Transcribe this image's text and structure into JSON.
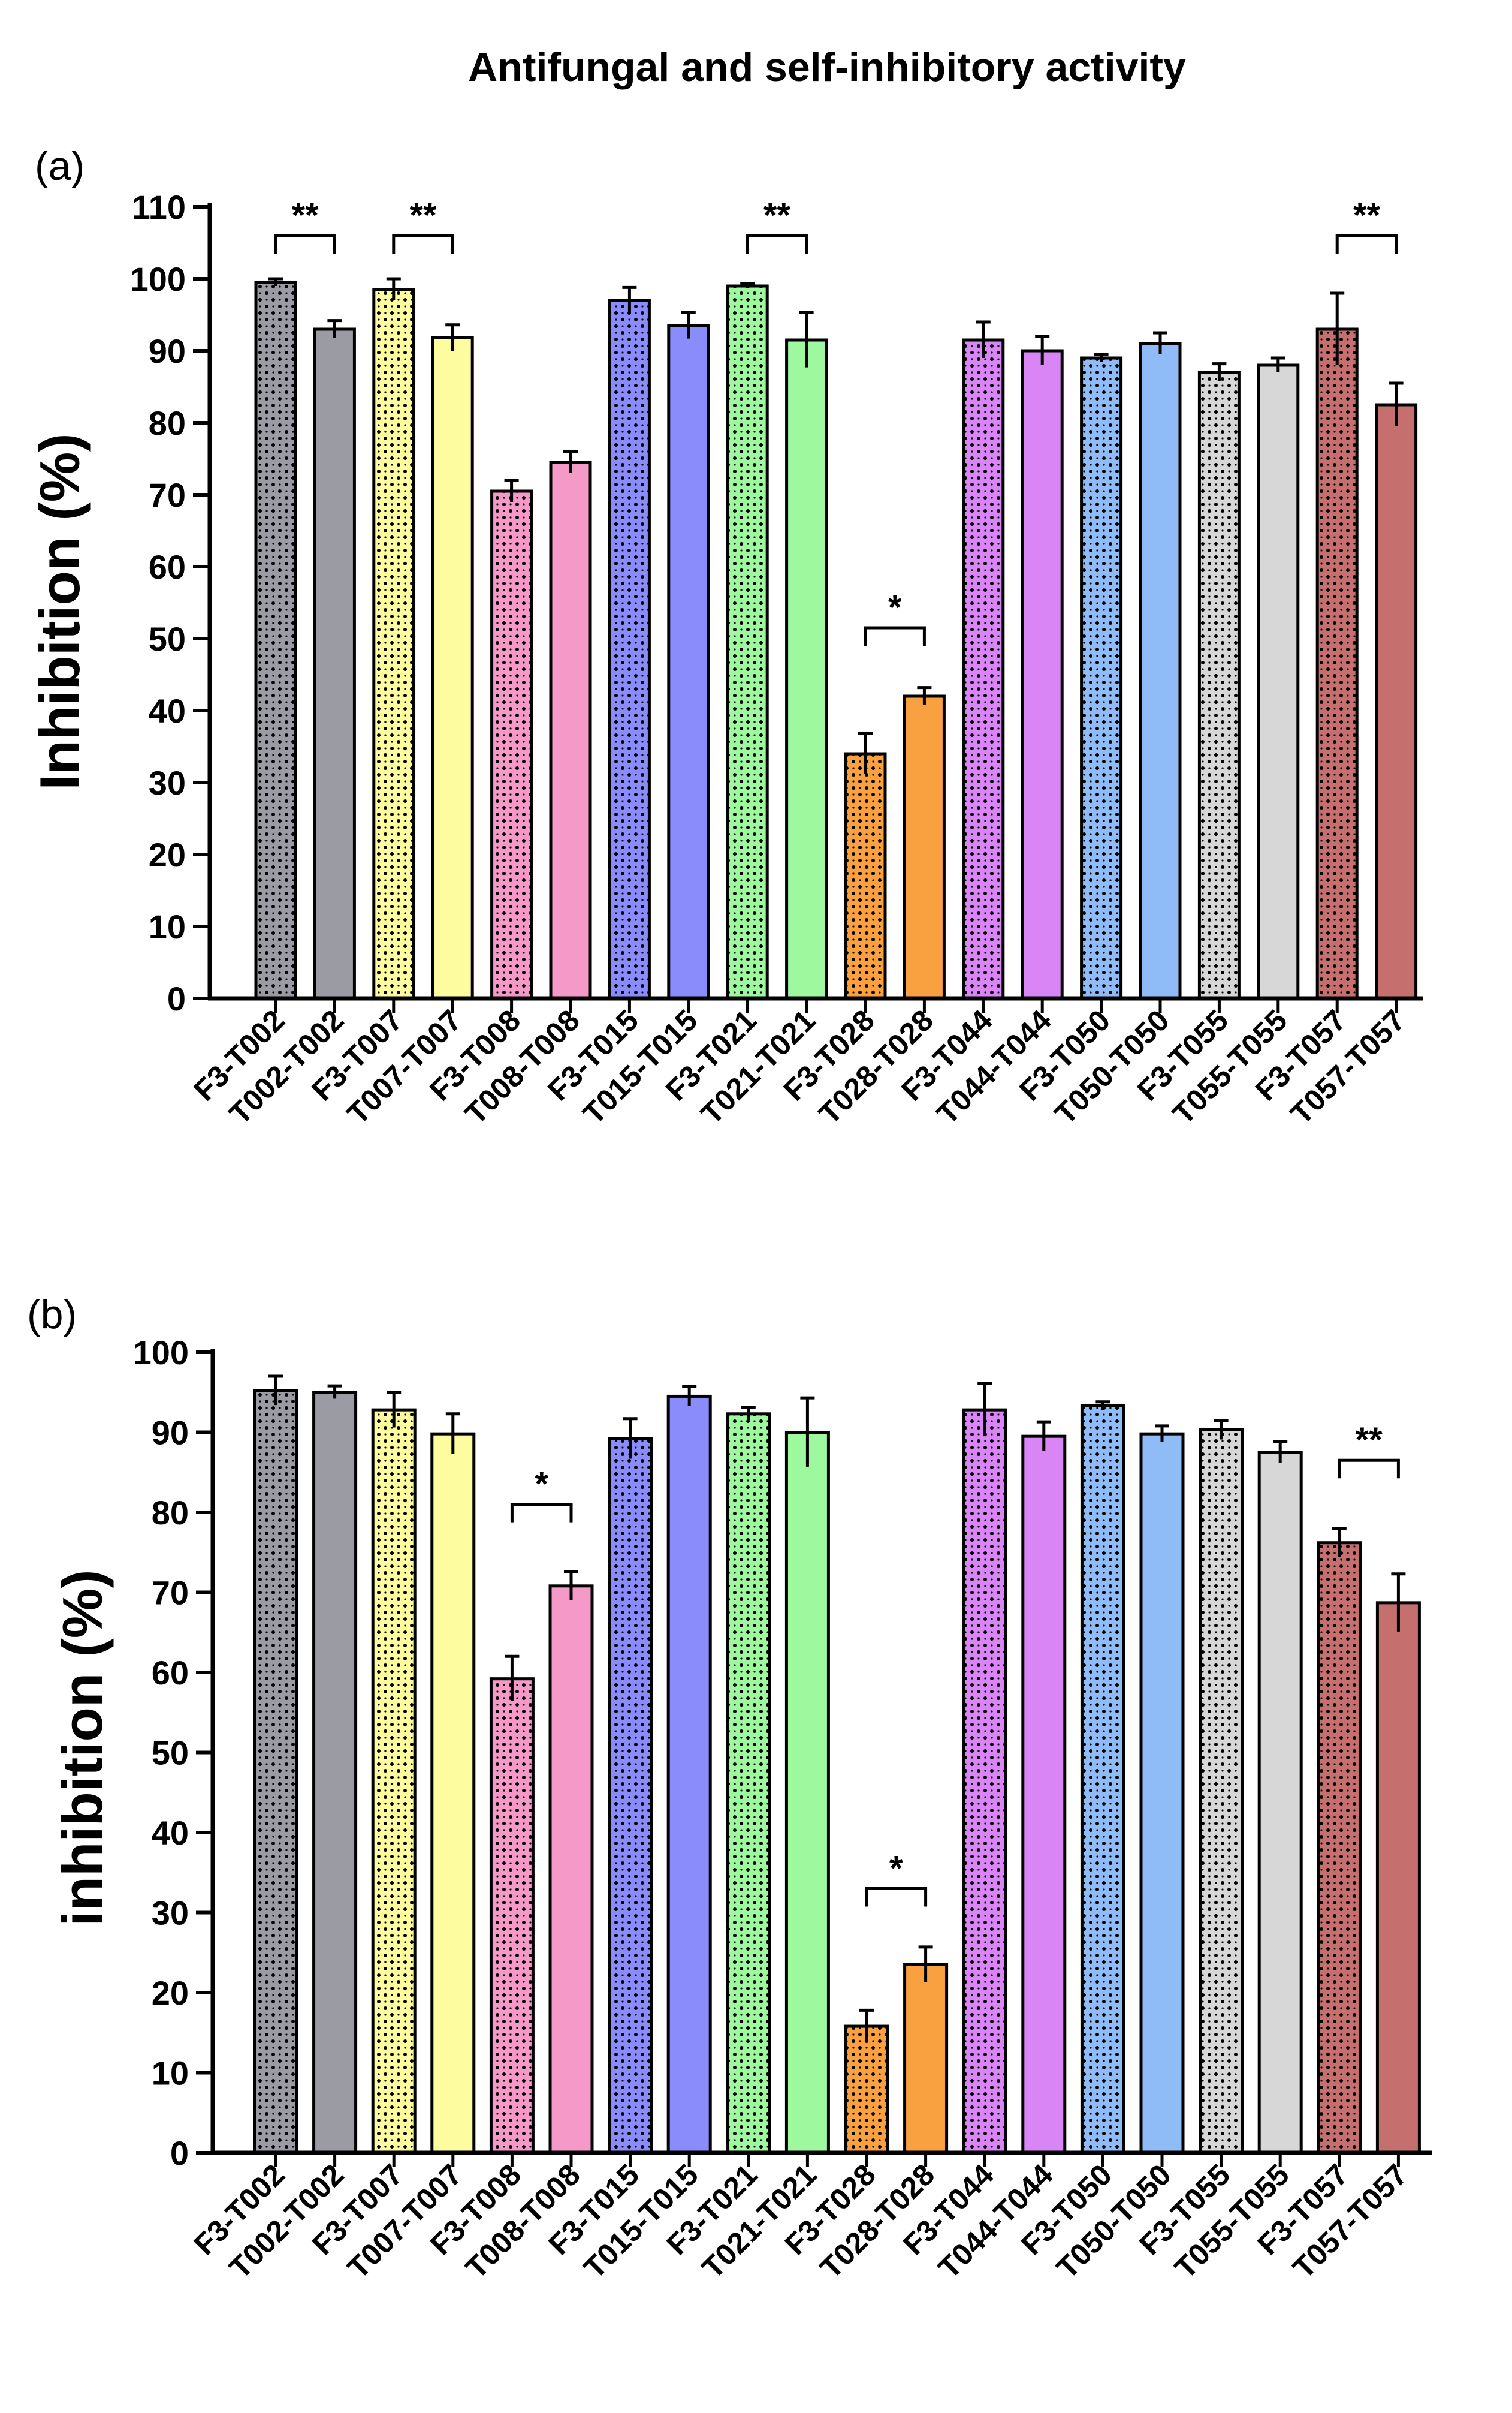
{
  "figure_title": "Antifungal and self-inhibitory activity",
  "colors": {
    "T002": "#9b9ba3",
    "T007": "#fdfda0",
    "T008": "#f59ac8",
    "T015": "#8a8cfb",
    "T021": "#9ef99e",
    "T028": "#f9a040",
    "T044": "#d985f6",
    "T050": "#8fbcf6",
    "T055": "#d7d7d7",
    "T057": "#c5706f"
  },
  "chart_data": [
    {
      "type": "bar",
      "panel_label": "(a)",
      "title": "",
      "xlabel": "",
      "ylabel": "Inhibition (%)",
      "ylim": [
        0,
        110
      ],
      "yticks": [
        "0",
        "10",
        "20",
        "30",
        "40",
        "50",
        "60",
        "70",
        "80",
        "90",
        "100",
        "110"
      ],
      "categories": [
        "F3-T002",
        "T002-T002",
        "F3-T007",
        "T007-T007",
        "F3-T008",
        "T008-T008",
        "F3-T015",
        "T015-T015",
        "F3-T021",
        "T021-T021",
        "F3-T028",
        "T028-T028",
        "F3-T044",
        "T044-T044",
        "F3-T050",
        "T050-T050",
        "F3-T055",
        "T055-T055",
        "F3-T057",
        "T057-T057"
      ],
      "values": [
        99.5,
        93,
        98.5,
        91.8,
        70.5,
        74.5,
        97,
        93.5,
        99,
        91.5,
        34,
        42,
        91.5,
        90,
        89,
        91,
        87,
        88,
        93,
        82.5
      ],
      "errors": [
        0.5,
        1.2,
        1.5,
        1.8,
        1.5,
        1.5,
        1.8,
        1.8,
        0.3,
        3.8,
        2.8,
        1.2,
        2.5,
        2,
        0.5,
        1.5,
        1.2,
        1,
        5,
        3
      ],
      "significance": [
        {
          "left": 0,
          "right": 1,
          "label": "**",
          "y": 106
        },
        {
          "left": 2,
          "right": 3,
          "label": "**",
          "y": 106
        },
        {
          "left": 8,
          "right": 9,
          "label": "**",
          "y": 106
        },
        {
          "left": 10,
          "right": 11,
          "label": "*",
          "y": 51.5
        },
        {
          "left": 18,
          "right": 19,
          "label": "**",
          "y": 106
        }
      ]
    },
    {
      "type": "bar",
      "panel_label": "(b)",
      "title": "",
      "xlabel": "",
      "ylabel": "inhibition (%)",
      "ylim": [
        0,
        100
      ],
      "yticks": [
        "0",
        "10",
        "20",
        "30",
        "40",
        "50",
        "60",
        "70",
        "80",
        "90",
        "100"
      ],
      "categories": [
        "F3-T002",
        "T002-T002",
        "F3-T007",
        "T007-T007",
        "F3-T008",
        "T008-T008",
        "F3-T015",
        "T015-T015",
        "F3-T021",
        "T021-T021",
        "F3-T028",
        "T028-T028",
        "F3-T044",
        "T044-T044",
        "F3-T050",
        "T050-T050",
        "F3-T055",
        "T055-T055",
        "F3-T057",
        "T057-T057"
      ],
      "values": [
        95.2,
        95,
        92.8,
        89.8,
        59.2,
        70.8,
        89.2,
        94.5,
        92.3,
        90,
        15.8,
        23.5,
        92.8,
        89.5,
        93.3,
        89.8,
        90.3,
        87.5,
        76.2,
        68.7
      ],
      "errors": [
        1.8,
        0.8,
        2.2,
        2.5,
        2.8,
        1.8,
        2.5,
        1.2,
        0.8,
        4.3,
        2,
        2.2,
        3.3,
        1.8,
        0.5,
        1,
        1.2,
        1.3,
        1.8,
        3.6
      ],
      "significance": [
        {
          "left": 4,
          "right": 5,
          "label": "*",
          "y": 81
        },
        {
          "left": 10,
          "right": 11,
          "label": "*",
          "y": 33
        },
        {
          "left": 18,
          "right": 19,
          "label": "**",
          "y": 86.5
        }
      ]
    }
  ]
}
